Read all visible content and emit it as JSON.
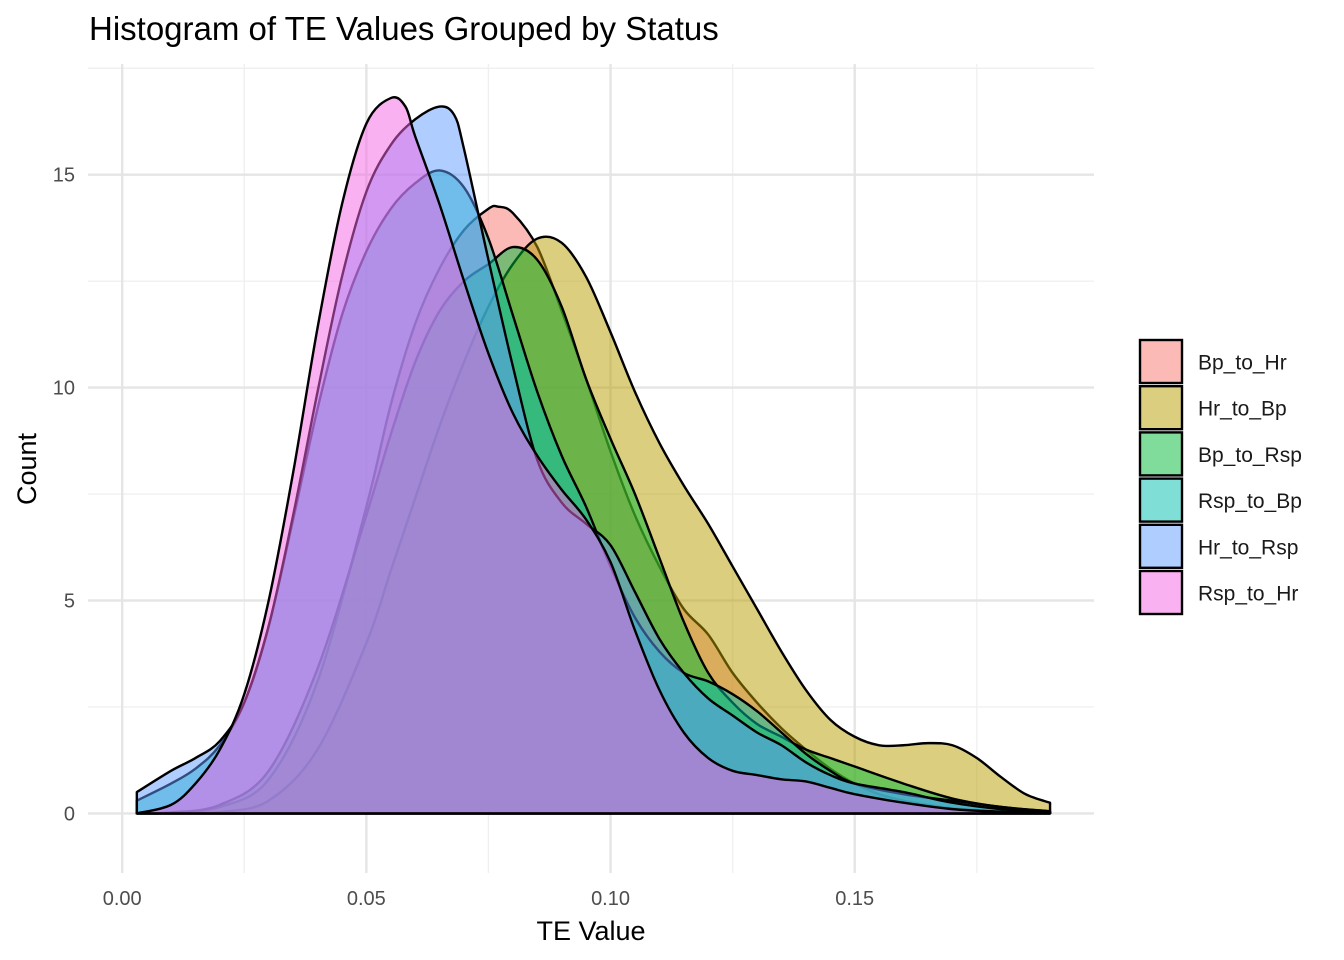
{
  "chart_data": {
    "type": "area",
    "title": "Histogram of TE Values Grouped by Status",
    "xlabel": "TE Value",
    "ylabel": "Count",
    "xlim": [
      -0.007,
      0.199
    ],
    "ylim": [
      -1.4,
      17.6
    ],
    "x_ticks": [
      0.0,
      0.05,
      0.1,
      0.15
    ],
    "x_tick_labels": [
      "0.00",
      "0.05",
      "0.10",
      "0.15"
    ],
    "y_ticks": [
      0,
      5,
      10,
      15
    ],
    "y_tick_labels": [
      "0",
      "5",
      "10",
      "15"
    ],
    "grid": true,
    "legend_position": "right",
    "fill_opacity": 0.5,
    "series": [
      {
        "name": "Bp_to_Hr",
        "color": "#F8766D",
        "points": [
          [
            0.003,
            0
          ],
          [
            0.01,
            0.02
          ],
          [
            0.02,
            0.15
          ],
          [
            0.03,
            0.8
          ],
          [
            0.04,
            3.1
          ],
          [
            0.05,
            7.2
          ],
          [
            0.055,
            9.6
          ],
          [
            0.06,
            11.5
          ],
          [
            0.065,
            12.8
          ],
          [
            0.07,
            13.7
          ],
          [
            0.075,
            14.2
          ],
          [
            0.077,
            14.25
          ],
          [
            0.08,
            14.1
          ],
          [
            0.085,
            13.3
          ],
          [
            0.09,
            11.8
          ],
          [
            0.095,
            10.2
          ],
          [
            0.1,
            8.5
          ],
          [
            0.105,
            7.0
          ],
          [
            0.11,
            5.8
          ],
          [
            0.115,
            4.8
          ],
          [
            0.12,
            4.2
          ],
          [
            0.125,
            3.3
          ],
          [
            0.13,
            2.6
          ],
          [
            0.135,
            2.0
          ],
          [
            0.14,
            1.5
          ],
          [
            0.145,
            1.05
          ],
          [
            0.15,
            0.7
          ],
          [
            0.155,
            0.45
          ],
          [
            0.16,
            0.3
          ],
          [
            0.165,
            0.2
          ],
          [
            0.17,
            0.12
          ],
          [
            0.18,
            0.05
          ],
          [
            0.19,
            0.02
          ]
        ]
      },
      {
        "name": "Hr_to_Bp",
        "color": "#B79F00",
        "points": [
          [
            0.003,
            0
          ],
          [
            0.01,
            0
          ],
          [
            0.02,
            0.03
          ],
          [
            0.03,
            0.3
          ],
          [
            0.04,
            1.5
          ],
          [
            0.05,
            4.0
          ],
          [
            0.055,
            5.7
          ],
          [
            0.06,
            7.4
          ],
          [
            0.065,
            9.1
          ],
          [
            0.07,
            10.6
          ],
          [
            0.075,
            11.9
          ],
          [
            0.08,
            12.9
          ],
          [
            0.085,
            13.5
          ],
          [
            0.09,
            13.4
          ],
          [
            0.095,
            12.6
          ],
          [
            0.1,
            11.3
          ],
          [
            0.105,
            9.9
          ],
          [
            0.11,
            8.7
          ],
          [
            0.115,
            7.7
          ],
          [
            0.12,
            6.8
          ],
          [
            0.125,
            5.8
          ],
          [
            0.13,
            4.8
          ],
          [
            0.135,
            3.8
          ],
          [
            0.14,
            2.9
          ],
          [
            0.145,
            2.2
          ],
          [
            0.15,
            1.8
          ],
          [
            0.155,
            1.6
          ],
          [
            0.16,
            1.6
          ],
          [
            0.165,
            1.65
          ],
          [
            0.17,
            1.6
          ],
          [
            0.175,
            1.3
          ],
          [
            0.18,
            0.85
          ],
          [
            0.185,
            0.45
          ],
          [
            0.19,
            0.25
          ]
        ]
      },
      {
        "name": "Bp_to_Rsp",
        "color": "#00BA38",
        "points": [
          [
            0.003,
            0
          ],
          [
            0.01,
            0.02
          ],
          [
            0.02,
            0.2
          ],
          [
            0.03,
            1.0
          ],
          [
            0.04,
            3.4
          ],
          [
            0.05,
            7.0
          ],
          [
            0.055,
            8.9
          ],
          [
            0.06,
            10.6
          ],
          [
            0.065,
            11.8
          ],
          [
            0.07,
            12.5
          ],
          [
            0.075,
            12.9
          ],
          [
            0.08,
            13.3
          ],
          [
            0.085,
            13.0
          ],
          [
            0.09,
            11.9
          ],
          [
            0.095,
            10.2
          ],
          [
            0.1,
            8.8
          ],
          [
            0.105,
            7.5
          ],
          [
            0.11,
            6.0
          ],
          [
            0.115,
            4.5
          ],
          [
            0.12,
            3.3
          ],
          [
            0.125,
            2.6
          ],
          [
            0.13,
            2.1
          ],
          [
            0.135,
            1.8
          ],
          [
            0.14,
            1.5
          ],
          [
            0.145,
            1.3
          ],
          [
            0.15,
            1.1
          ],
          [
            0.16,
            0.7
          ],
          [
            0.17,
            0.35
          ],
          [
            0.18,
            0.15
          ],
          [
            0.19,
            0.05
          ]
        ]
      },
      {
        "name": "Rsp_to_Bp",
        "color": "#00C0AF",
        "points": [
          [
            0.003,
            0.3
          ],
          [
            0.01,
            0.7
          ],
          [
            0.015,
            1.05
          ],
          [
            0.02,
            1.6
          ],
          [
            0.025,
            2.6
          ],
          [
            0.03,
            4.4
          ],
          [
            0.035,
            6.9
          ],
          [
            0.04,
            9.5
          ],
          [
            0.045,
            11.7
          ],
          [
            0.05,
            13.2
          ],
          [
            0.055,
            14.2
          ],
          [
            0.06,
            14.8
          ],
          [
            0.065,
            15.1
          ],
          [
            0.07,
            14.7
          ],
          [
            0.075,
            13.5
          ],
          [
            0.08,
            11.7
          ],
          [
            0.085,
            9.9
          ],
          [
            0.09,
            8.4
          ],
          [
            0.095,
            7.2
          ],
          [
            0.1,
            5.8
          ],
          [
            0.105,
            4.6
          ],
          [
            0.11,
            3.8
          ],
          [
            0.115,
            3.3
          ],
          [
            0.12,
            3.1
          ],
          [
            0.125,
            2.8
          ],
          [
            0.13,
            2.4
          ],
          [
            0.135,
            1.9
          ],
          [
            0.14,
            1.4
          ],
          [
            0.145,
            1.0
          ],
          [
            0.15,
            0.7
          ],
          [
            0.16,
            0.45
          ],
          [
            0.17,
            0.3
          ],
          [
            0.18,
            0.15
          ],
          [
            0.19,
            0.05
          ]
        ]
      },
      {
        "name": "Hr_to_Rsp",
        "color": "#619CFF",
        "points": [
          [
            0.003,
            0.5
          ],
          [
            0.01,
            1.0
          ],
          [
            0.015,
            1.3
          ],
          [
            0.02,
            1.7
          ],
          [
            0.025,
            2.6
          ],
          [
            0.03,
            4.4
          ],
          [
            0.035,
            7.0
          ],
          [
            0.04,
            9.9
          ],
          [
            0.045,
            12.6
          ],
          [
            0.05,
            14.6
          ],
          [
            0.055,
            15.7
          ],
          [
            0.06,
            16.3
          ],
          [
            0.065,
            16.6
          ],
          [
            0.068,
            16.4
          ],
          [
            0.07,
            15.6
          ],
          [
            0.075,
            13.0
          ],
          [
            0.08,
            10.5
          ],
          [
            0.085,
            8.3
          ],
          [
            0.09,
            7.3
          ],
          [
            0.095,
            6.8
          ],
          [
            0.1,
            6.3
          ],
          [
            0.105,
            5.2
          ],
          [
            0.11,
            4.1
          ],
          [
            0.115,
            3.3
          ],
          [
            0.12,
            2.7
          ],
          [
            0.125,
            2.3
          ],
          [
            0.13,
            1.9
          ],
          [
            0.135,
            1.6
          ],
          [
            0.14,
            1.2
          ],
          [
            0.145,
            0.9
          ],
          [
            0.15,
            0.7
          ],
          [
            0.16,
            0.5
          ],
          [
            0.17,
            0.25
          ],
          [
            0.18,
            0.1
          ],
          [
            0.19,
            0.03
          ]
        ]
      },
      {
        "name": "Rsp_to_Hr",
        "color": "#F564E3",
        "points": [
          [
            0.003,
            0
          ],
          [
            0.01,
            0.2
          ],
          [
            0.015,
            0.7
          ],
          [
            0.02,
            1.5
          ],
          [
            0.025,
            2.8
          ],
          [
            0.03,
            5.0
          ],
          [
            0.035,
            8.0
          ],
          [
            0.04,
            11.4
          ],
          [
            0.045,
            14.3
          ],
          [
            0.05,
            16.2
          ],
          [
            0.055,
            16.8
          ],
          [
            0.058,
            16.6
          ],
          [
            0.06,
            15.9
          ],
          [
            0.065,
            14.3
          ],
          [
            0.07,
            12.5
          ],
          [
            0.075,
            10.8
          ],
          [
            0.08,
            9.4
          ],
          [
            0.085,
            8.4
          ],
          [
            0.09,
            7.6
          ],
          [
            0.095,
            6.9
          ],
          [
            0.1,
            5.9
          ],
          [
            0.105,
            4.3
          ],
          [
            0.11,
            2.9
          ],
          [
            0.115,
            1.9
          ],
          [
            0.12,
            1.3
          ],
          [
            0.125,
            1.0
          ],
          [
            0.13,
            0.9
          ],
          [
            0.135,
            0.8
          ],
          [
            0.14,
            0.75
          ],
          [
            0.145,
            0.6
          ],
          [
            0.15,
            0.45
          ],
          [
            0.16,
            0.25
          ],
          [
            0.17,
            0.1
          ],
          [
            0.18,
            0.04
          ],
          [
            0.19,
            0.01
          ]
        ]
      }
    ]
  }
}
